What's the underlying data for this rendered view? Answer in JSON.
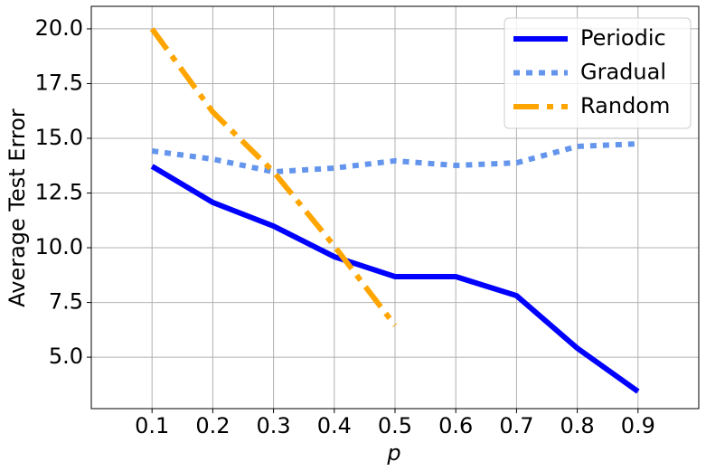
{
  "chart_data": {
    "type": "line",
    "xlabel": "p",
    "ylabel": "Average Test Error",
    "x": [
      0.1,
      0.2,
      0.3,
      0.4,
      0.5,
      0.6,
      0.7,
      0.8,
      0.9
    ],
    "series": [
      {
        "name": "Periodic",
        "color": "#0000ff",
        "style": "solid",
        "values": [
          13.72,
          12.07,
          10.99,
          9.59,
          8.68,
          8.68,
          7.81,
          5.41,
          3.43
        ]
      },
      {
        "name": "Gradual",
        "color": "#6495ed",
        "style": "dotted",
        "values": [
          14.42,
          14.05,
          13.47,
          13.64,
          13.97,
          13.76,
          13.88,
          14.63,
          14.75
        ]
      },
      {
        "name": "Random",
        "color": "#ffa500",
        "style": "dashdot",
        "values": [
          20.0,
          16.2,
          13.47,
          10.08,
          6.45,
          null,
          null,
          null,
          null
        ]
      }
    ],
    "xlim": [
      0,
      1
    ],
    "xticks": [
      0.1,
      0.2,
      0.3,
      0.4,
      0.5,
      0.6,
      0.7,
      0.8,
      0.9
    ],
    "ylim": [
      2.65,
      21.03
    ],
    "yticks": [
      {
        "value": 5,
        "label": "5.0"
      },
      7.5,
      {
        "value": 10,
        "label": "10.0"
      },
      12.5,
      {
        "value": 15,
        "label": "15.0"
      },
      17.5,
      {
        "value": 20,
        "label": "20.0"
      }
    ],
    "grid": true,
    "legend": "upper-right"
  }
}
